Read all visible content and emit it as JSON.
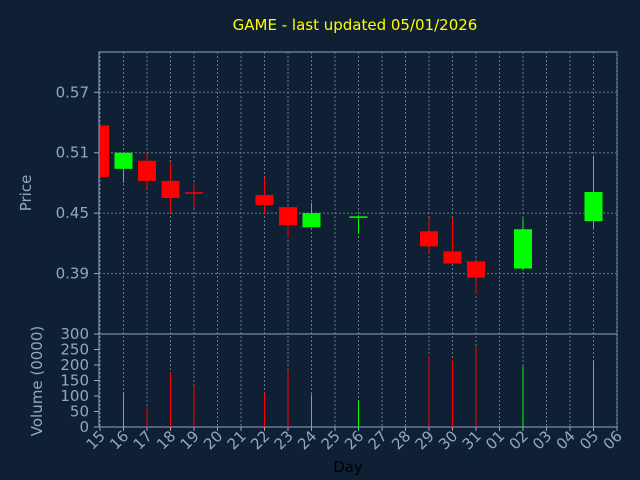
{
  "chart_data": [
    {
      "type": "candlestick",
      "title": "GAME - last updated 05/01/2026",
      "ylabel": "Price",
      "xlabel": "Day",
      "ylim": [
        0.33,
        0.61
      ],
      "yticks": [
        "0.57",
        "0.51",
        "0.45",
        "0.39"
      ],
      "ytick_values": [
        0.57,
        0.51,
        0.45,
        0.39
      ],
      "grid": true,
      "colors": {
        "up": "#00ff00",
        "down": "#ff0000",
        "neutral": "#ff0000",
        "title": "#ffff00",
        "axis_text": "#8fa9c4",
        "grid": "#6a7a8e"
      },
      "x_ticks": [
        "15",
        "16",
        "17",
        "18",
        "19",
        "20",
        "21",
        "22",
        "23",
        "24",
        "25",
        "26",
        "27",
        "28",
        "29",
        "30",
        "31",
        "01",
        "02",
        "03",
        "04",
        "05",
        "06"
      ],
      "candles": [
        {
          "day": "15",
          "open": 0.537,
          "close": 0.486,
          "high": 0.537,
          "low": 0.486
        },
        {
          "day": "16",
          "open": 0.494,
          "close": 0.51,
          "high": 0.51,
          "low": 0.48
        },
        {
          "day": "17",
          "open": 0.502,
          "close": 0.482,
          "high": 0.51,
          "low": 0.474
        },
        {
          "day": "18",
          "open": 0.482,
          "close": 0.465,
          "high": 0.5,
          "low": 0.45
        },
        {
          "day": "19",
          "open": 0.47,
          "close": 0.47,
          "high": 0.48,
          "low": 0.455
        },
        {
          "day": "22",
          "open": 0.468,
          "close": 0.458,
          "high": 0.485,
          "low": 0.45
        },
        {
          "day": "23",
          "open": 0.456,
          "close": 0.438,
          "high": 0.456,
          "low": 0.425
        },
        {
          "day": "24",
          "open": 0.436,
          "close": 0.45,
          "high": 0.46,
          "low": 0.436
        },
        {
          "day": "26",
          "open": 0.445,
          "close": 0.446,
          "high": 0.448,
          "low": 0.43
        },
        {
          "day": "29",
          "open": 0.432,
          "close": 0.417,
          "high": 0.445,
          "low": 0.41
        },
        {
          "day": "30",
          "open": 0.412,
          "close": 0.4,
          "high": 0.445,
          "low": 0.4
        },
        {
          "day": "31",
          "open": 0.402,
          "close": 0.386,
          "high": 0.402,
          "low": 0.37
        },
        {
          "day": "02",
          "open": 0.395,
          "close": 0.434,
          "high": 0.445,
          "low": 0.393
        },
        {
          "day": "05",
          "open": 0.442,
          "close": 0.471,
          "high": 0.507,
          "low": 0.435
        }
      ]
    },
    {
      "type": "bar",
      "ylabel": "Volume (0000)",
      "ylim": [
        0,
        300
      ],
      "yticks": [
        "300",
        "250",
        "200",
        "150",
        "100",
        "50",
        "0"
      ],
      "ytick_values": [
        300,
        250,
        200,
        150,
        100,
        50,
        0
      ],
      "volumes": [
        {
          "day": "16",
          "value": 110,
          "dir": "up"
        },
        {
          "day": "17",
          "value": 65,
          "dir": "down"
        },
        {
          "day": "18",
          "value": 175,
          "dir": "down"
        },
        {
          "day": "19",
          "value": 135,
          "dir": "down"
        },
        {
          "day": "22",
          "value": 110,
          "dir": "down"
        },
        {
          "day": "23",
          "value": 185,
          "dir": "down"
        },
        {
          "day": "24",
          "value": 105,
          "dir": "up"
        },
        {
          "day": "26",
          "value": 85,
          "dir": "up"
        },
        {
          "day": "29",
          "value": 230,
          "dir": "down"
        },
        {
          "day": "30",
          "value": 215,
          "dir": "down"
        },
        {
          "day": "31",
          "value": 260,
          "dir": "down"
        },
        {
          "day": "02",
          "value": 195,
          "dir": "up"
        },
        {
          "day": "05",
          "value": 215,
          "dir": "up"
        }
      ]
    }
  ]
}
